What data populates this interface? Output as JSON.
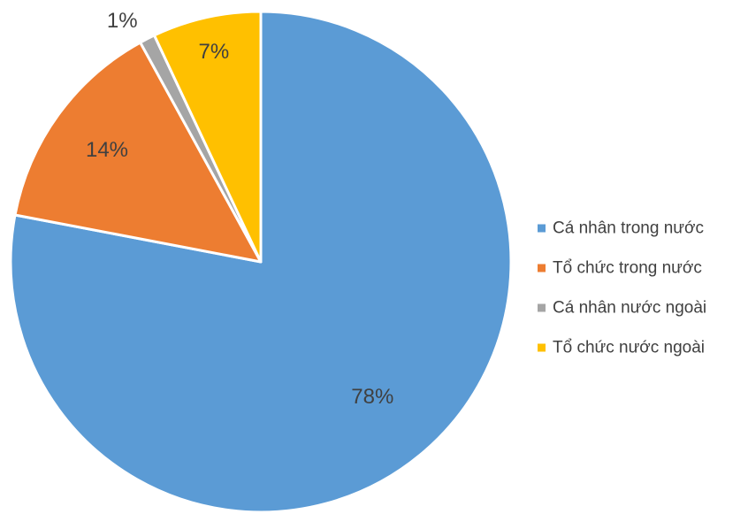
{
  "chart_data": {
    "type": "pie",
    "title": "",
    "categories": [
      "Cá nhân trong nước",
      "Tổ chức trong nước",
      "Cá nhân nước ngoài",
      "Tổ chức nước ngoài"
    ],
    "values": [
      78,
      14,
      1,
      7
    ],
    "data_labels": [
      "78%",
      "14%",
      "1%",
      "7%"
    ],
    "colors": [
      "#5B9BD5",
      "#ED7D31",
      "#A5A5A5",
      "#FFC000"
    ],
    "start_angle": "12 o'clock",
    "direction": "clockwise",
    "legend_position": "right",
    "legend": [
      "Cá nhân trong nước",
      "Tổ chức trong nước",
      "Cá nhân nước ngoài",
      "Tổ chức nước ngoài"
    ]
  }
}
